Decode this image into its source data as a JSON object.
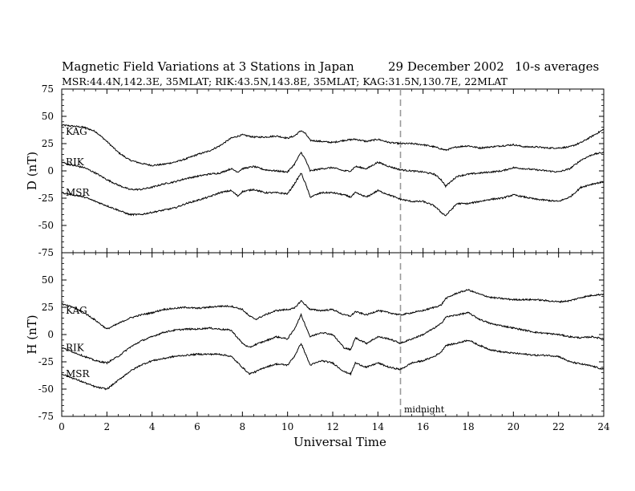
{
  "title": {
    "main": "Magnetic Field Variations at 3 Stations in Japan",
    "date": "29 December 2002",
    "averaging": "10-s averages"
  },
  "subtitle": "MSR:44.4N,142.3E, 35MLAT;  RIK:43.5N,143.8E, 35MLAT;  KAG:31.5N,130.7E, 22MLAT",
  "chart_data": [
    {
      "type": "line",
      "panel": "top",
      "ylabel": "D (nT)",
      "ylim": [
        -75,
        75
      ],
      "yticks": [
        "75",
        "50",
        "25",
        "0",
        "-25",
        "-50",
        "-75"
      ],
      "xlim": [
        0,
        24
      ],
      "grid": false,
      "series": [
        {
          "name": "KAG",
          "x": [
            0,
            1,
            1.5,
            2,
            2.5,
            3,
            3.5,
            4,
            4.5,
            5,
            5.5,
            6,
            6.5,
            7,
            7.5,
            8,
            8.5,
            9,
            9.5,
            10,
            10.3,
            10.6,
            10.8,
            11,
            11.5,
            12,
            12.5,
            13,
            13.5,
            14,
            14.5,
            15,
            15.5,
            16,
            16.5,
            17,
            17.5,
            18,
            18.5,
            19,
            19.5,
            20,
            20.5,
            21,
            21.5,
            22,
            22.5,
            23,
            23.5,
            24
          ],
          "y": [
            42,
            40,
            36,
            27,
            17,
            10,
            7,
            5,
            6,
            8,
            11,
            15,
            18,
            23,
            30,
            33,
            31,
            31,
            32,
            30,
            32,
            37,
            34,
            28,
            27,
            26,
            28,
            29,
            27,
            29,
            26,
            25,
            25,
            24,
            22,
            19,
            22,
            23,
            21,
            22,
            23,
            24,
            22,
            22,
            21,
            21,
            22,
            26,
            32,
            38
          ]
        },
        {
          "name": "RIK",
          "x": [
            0,
            0.5,
            1,
            1.5,
            2,
            2.5,
            3,
            3.5,
            4,
            4.5,
            5,
            5.5,
            6,
            6.5,
            7,
            7.5,
            7.8,
            8,
            8.5,
            9,
            9.5,
            10,
            10.3,
            10.6,
            10.8,
            11,
            11.5,
            12,
            12.5,
            12.8,
            13,
            13.5,
            14,
            14.5,
            15,
            15.5,
            16,
            16.5,
            16.8,
            17,
            17.5,
            18,
            18.5,
            19,
            19.5,
            20,
            20.5,
            21,
            21.5,
            22,
            22.5,
            23,
            23.5,
            24
          ],
          "y": [
            8,
            5,
            3,
            -2,
            -8,
            -13,
            -17,
            -17,
            -15,
            -12,
            -10,
            -7,
            -5,
            -3,
            -2,
            2,
            -1,
            2,
            4,
            1,
            0,
            -1,
            6,
            17,
            10,
            0,
            2,
            3,
            0,
            0,
            4,
            2,
            8,
            4,
            1,
            0,
            -1,
            -3,
            -8,
            -14,
            -5,
            -3,
            -2,
            -1,
            0,
            3,
            2,
            1,
            0,
            -1,
            2,
            10,
            15,
            17
          ]
        },
        {
          "name": "MSR",
          "x": [
            0,
            0.5,
            1,
            1.5,
            2,
            2.5,
            3,
            3.5,
            4,
            4.5,
            5,
            5.5,
            6,
            6.5,
            7,
            7.5,
            7.8,
            8,
            8.5,
            9,
            9.5,
            10,
            10.3,
            10.6,
            10.8,
            11,
            11.5,
            12,
            12.5,
            12.8,
            13,
            13.5,
            14,
            14.5,
            15,
            15.5,
            16,
            16.5,
            16.8,
            17,
            17.5,
            18,
            18.5,
            19,
            19.5,
            20,
            20.5,
            21,
            21.5,
            22,
            22.5,
            23,
            23.5,
            24
          ],
          "y": [
            -20,
            -22,
            -24,
            -28,
            -32,
            -36,
            -40,
            -40,
            -38,
            -36,
            -34,
            -30,
            -27,
            -24,
            -20,
            -18,
            -23,
            -19,
            -17,
            -20,
            -20,
            -21,
            -12,
            -2,
            -12,
            -24,
            -20,
            -20,
            -22,
            -24,
            -20,
            -24,
            -18,
            -22,
            -26,
            -28,
            -28,
            -32,
            -38,
            -41,
            -30,
            -30,
            -28,
            -26,
            -25,
            -22,
            -24,
            -26,
            -27,
            -28,
            -24,
            -15,
            -12,
            -10
          ]
        }
      ],
      "midline_x": 15
    },
    {
      "type": "line",
      "panel": "bottom",
      "ylabel": "H (nT)",
      "xlabel": "Universal Time",
      "ylim": [
        -75,
        75
      ],
      "yticks": [
        "50",
        "25",
        "0",
        "-25",
        "-50",
        "-75"
      ],
      "xlim": [
        0,
        24
      ],
      "xticks": [
        "0",
        "2",
        "4",
        "6",
        "8",
        "10",
        "12",
        "14",
        "16",
        "18",
        "20",
        "22",
        "24"
      ],
      "grid": false,
      "series": [
        {
          "name": "KAG",
          "x": [
            0,
            0.5,
            1,
            1.5,
            2,
            2.5,
            3,
            3.5,
            4,
            4.5,
            5,
            5.5,
            6,
            6.5,
            7,
            7.5,
            8,
            8.3,
            8.6,
            9,
            9.5,
            10,
            10.3,
            10.6,
            10.8,
            11,
            11.5,
            12,
            12.5,
            12.8,
            13,
            13.5,
            14,
            14.5,
            15,
            15.5,
            16,
            16.5,
            16.8,
            17,
            17.5,
            18,
            18.5,
            19,
            19.5,
            20,
            20.5,
            21,
            21.5,
            22,
            22.5,
            23,
            23.5,
            24
          ],
          "y": [
            28,
            25,
            20,
            13,
            5,
            10,
            15,
            18,
            20,
            23,
            24,
            25,
            24,
            25,
            26,
            26,
            23,
            17,
            14,
            18,
            22,
            23,
            24,
            31,
            27,
            23,
            22,
            23,
            18,
            17,
            21,
            18,
            22,
            20,
            18,
            20,
            22,
            25,
            27,
            33,
            38,
            41,
            37,
            34,
            33,
            32,
            32,
            32,
            31,
            30,
            31,
            34,
            36,
            37
          ]
        },
        {
          "name": "RIK",
          "x": [
            0,
            0.5,
            1,
            1.5,
            2,
            2.5,
            3,
            3.5,
            4,
            4.5,
            5,
            5.5,
            6,
            6.5,
            7,
            7.5,
            8,
            8.3,
            8.6,
            9,
            9.5,
            10,
            10.3,
            10.6,
            10.8,
            11,
            11.5,
            12,
            12.5,
            12.8,
            13,
            13.5,
            14,
            14.5,
            15,
            15.5,
            16,
            16.5,
            16.8,
            17,
            17.5,
            18,
            18.5,
            19,
            19.5,
            20,
            20.5,
            21,
            21.5,
            22,
            22.5,
            23,
            23.5,
            24
          ],
          "y": [
            -12,
            -16,
            -20,
            -24,
            -26,
            -20,
            -12,
            -6,
            -2,
            2,
            4,
            5,
            5,
            6,
            5,
            4,
            -8,
            -12,
            -9,
            -6,
            -2,
            -4,
            5,
            18,
            8,
            -2,
            2,
            0,
            -12,
            -14,
            -3,
            -8,
            -2,
            -4,
            -8,
            -4,
            0,
            6,
            10,
            16,
            18,
            20,
            14,
            10,
            8,
            6,
            4,
            2,
            1,
            0,
            -2,
            -3,
            -2,
            -4
          ]
        },
        {
          "name": "MSR",
          "x": [
            0,
            0.5,
            1,
            1.5,
            2,
            2.5,
            3,
            3.5,
            4,
            4.5,
            5,
            5.5,
            6,
            6.5,
            7,
            7.5,
            8,
            8.3,
            8.6,
            9,
            9.5,
            10,
            10.3,
            10.6,
            10.8,
            11,
            11.5,
            12,
            12.5,
            12.8,
            13,
            13.5,
            14,
            14.5,
            15,
            15.5,
            16,
            16.5,
            16.8,
            17,
            17.5,
            18,
            18.5,
            19,
            19.5,
            20,
            20.5,
            21,
            21.5,
            22,
            22.5,
            23,
            23.5,
            24
          ],
          "y": [
            -36,
            -40,
            -44,
            -48,
            -50,
            -42,
            -34,
            -28,
            -24,
            -22,
            -20,
            -19,
            -18,
            -18,
            -18,
            -20,
            -30,
            -36,
            -34,
            -30,
            -27,
            -28,
            -20,
            -8,
            -18,
            -28,
            -24,
            -26,
            -34,
            -36,
            -26,
            -30,
            -26,
            -30,
            -32,
            -26,
            -24,
            -20,
            -16,
            -10,
            -8,
            -5,
            -10,
            -14,
            -16,
            -17,
            -18,
            -19,
            -19,
            -20,
            -25,
            -27,
            -29,
            -32
          ]
        }
      ],
      "midline_x": 15,
      "annotation": "midnight"
    }
  ]
}
